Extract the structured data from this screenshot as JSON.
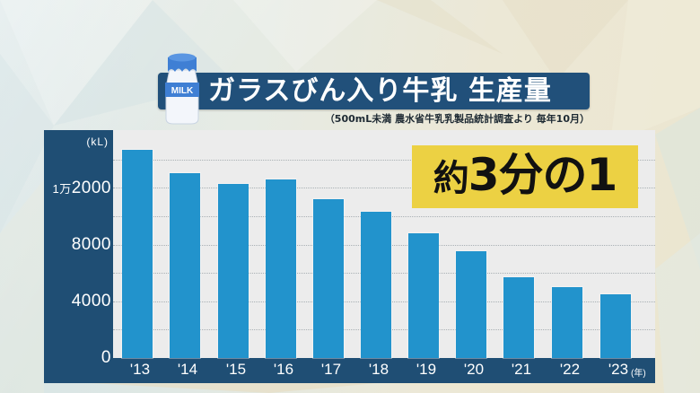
{
  "title": {
    "text": "ガラスびん入り牛乳 生産量",
    "subtitle": "（500mL未満 農水省牛乳乳製品統計調査より 毎年10月）",
    "bottle_label": "MILK"
  },
  "callout": {
    "prefix": "約",
    "text": "3分の1"
  },
  "colors": {
    "bar": "#2293cc",
    "panel": "#1f4e74",
    "plot_bg": "#ececec",
    "banner": "#21507a",
    "callout_bg": "#ecd143"
  },
  "axis": {
    "y_unit": "(kL)",
    "x_unit": "(年)",
    "y_ticks": [
      {
        "value": 0,
        "label": "0"
      },
      {
        "value": 4000,
        "label": "4000"
      },
      {
        "value": 8000,
        "label": "8000"
      },
      {
        "value": 12000,
        "label_prefix": "1万",
        "label": "2000"
      }
    ]
  },
  "chart_data": {
    "type": "bar",
    "title": "ガラスびん入り牛乳 生産量",
    "subtitle": "（500mL未満 農水省牛乳乳製品統計調査より 毎年10月）",
    "annotation": "約3分の1",
    "xlabel": "(年)",
    "ylabel": "(kL)",
    "categories": [
      "'13",
      "'14",
      "'15",
      "'16",
      "'17",
      "'18",
      "'19",
      "'20",
      "'21",
      "'22",
      "'23"
    ],
    "values": [
      14700,
      13000,
      12300,
      12600,
      11200,
      10300,
      8800,
      7500,
      5700,
      5000,
      4500
    ],
    "ylim": [
      0,
      16000
    ],
    "y_ticks": [
      0,
      4000,
      8000,
      12000
    ],
    "y_tick_labels": [
      "0",
      "4000",
      "8000",
      "1万2000"
    ],
    "gridlines": [
      2000,
      4000,
      6000,
      8000,
      10000,
      12000,
      14000
    ],
    "grid": true,
    "grid_style": "dotted",
    "legend": null
  }
}
